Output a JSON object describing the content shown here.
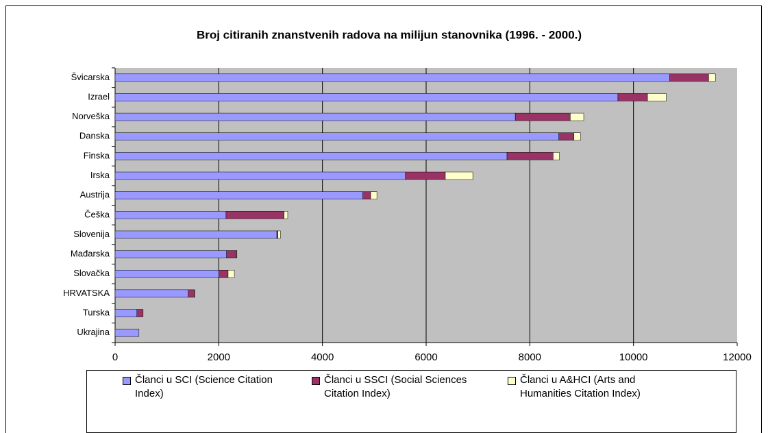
{
  "chart_data": {
    "type": "stacked-bar-horizontal",
    "title": "Broj citiranih znanstvenih radova na milijun stanovnika (1996. - 2000.)",
    "categories": [
      "Švicarska",
      "Izrael",
      "Norveška",
      "Danska",
      "Finska",
      "Irska",
      "Austrija",
      "Češka",
      "Slovenija",
      "Mađarska",
      "Slovačka",
      "HRVATSKA",
      "Turska",
      "Ukrajina"
    ],
    "series": [
      {
        "name": "Članci u SCI (Science Citation Index)",
        "color": "#9999ff",
        "values": [
          10700,
          9700,
          7720,
          8560,
          7560,
          5600,
          4780,
          2140,
          3120,
          2150,
          2000,
          1410,
          420,
          460
        ]
      },
      {
        "name": "Članci u SSCI (Social Sciences Citation Index)",
        "color": "#993366",
        "values": [
          750,
          570,
          1060,
          290,
          890,
          770,
          150,
          1120,
          20,
          190,
          180,
          120,
          120,
          0
        ]
      },
      {
        "name": "Članci u A&HCI (Arts and Humanities Citation Index)",
        "color": "#ffffcc",
        "values": [
          130,
          360,
          260,
          130,
          120,
          530,
          120,
          70,
          50,
          10,
          120,
          10,
          0,
          0
        ]
      }
    ],
    "xlim": [
      0,
      12000
    ],
    "xticks": [
      0,
      2000,
      4000,
      6000,
      8000,
      10000,
      12000
    ],
    "grid": true
  }
}
